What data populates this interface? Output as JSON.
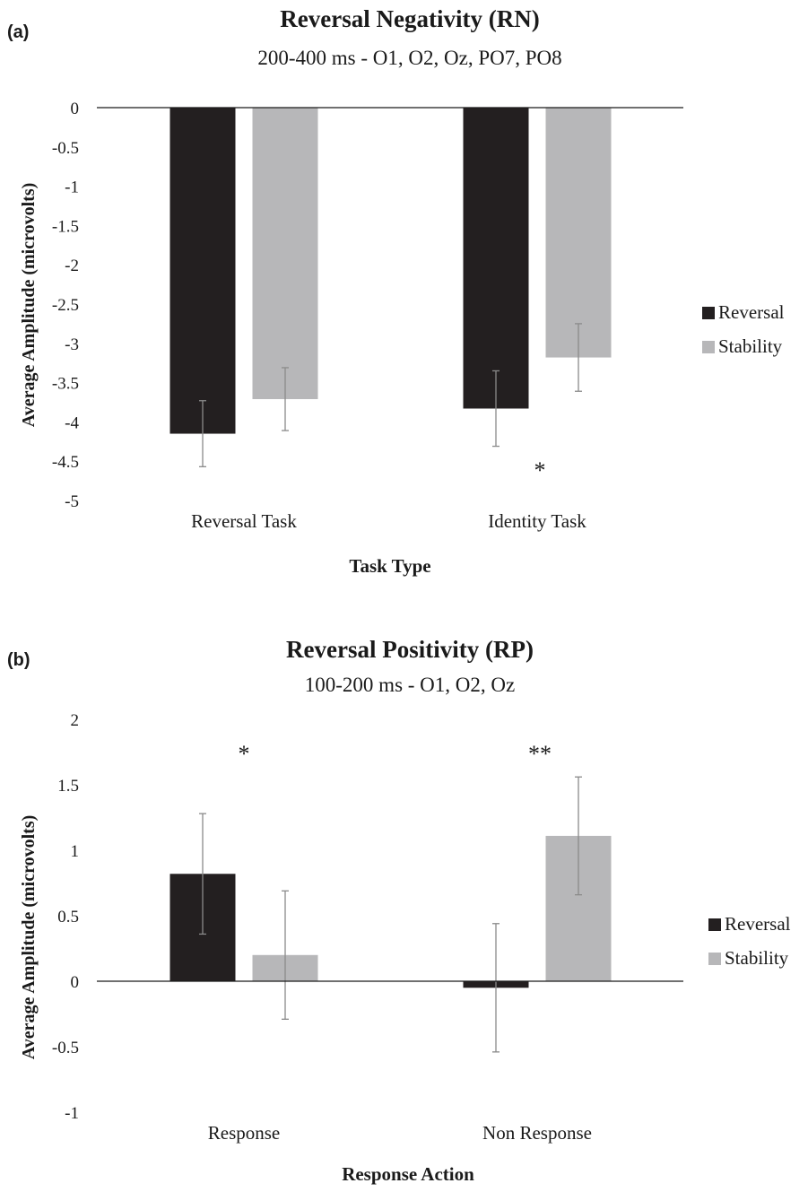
{
  "colors": {
    "reversal": "#231f20",
    "stability": "#b7b7b9",
    "axis": "#1a1a1a",
    "errorbar": "#8a8a8a"
  },
  "chart_data": [
    {
      "type": "bar",
      "panel_label": "(a)",
      "title": "Reversal Negativity (RN)",
      "subtitle": "200-400 ms - O1, O2, Oz, PO7, PO8",
      "xlabel": "Task Type",
      "ylabel": "Average Amplitude (microvolts)",
      "categories": [
        "Reversal Task",
        "Identity Task"
      ],
      "ylim": [
        -5,
        0
      ],
      "yticks": [
        0,
        -0.5,
        -1,
        -1.5,
        -2,
        -2.5,
        -3,
        -3.5,
        -4,
        -4.5,
        -5
      ],
      "ytick_labels": [
        "0",
        "-0.5",
        "-1",
        "-1.5",
        "-2",
        "-2.5",
        "-3",
        "-3.5",
        "-4",
        "-4.5",
        "-5"
      ],
      "legend_position": "right",
      "series": [
        {
          "name": "Reversal",
          "color_key": "reversal",
          "values": [
            -4.15,
            -3.83
          ],
          "error": [
            0.42,
            0.48
          ]
        },
        {
          "name": "Stability",
          "color_key": "stability",
          "values": [
            -3.71,
            -3.18
          ],
          "error": [
            0.4,
            0.43
          ]
        }
      ],
      "annotations": [
        {
          "text": "*",
          "category_index": 1,
          "y": -4.58
        }
      ]
    },
    {
      "type": "bar",
      "panel_label": "(b)",
      "title": "Reversal Positivity (RP)",
      "subtitle": "100-200 ms - O1, O2, Oz",
      "xlabel": "Response Action",
      "ylabel": "Average Amplitude (microvolts)",
      "categories": [
        "Response",
        "Non Response"
      ],
      "ylim": [
        -1,
        2
      ],
      "yticks": [
        2,
        1.5,
        1,
        0.5,
        0,
        -0.5,
        -1
      ],
      "ytick_labels": [
        "2",
        "1.5",
        "1",
        "0.5",
        "0",
        "-0.5",
        "-1"
      ],
      "legend_position": "right",
      "series": [
        {
          "name": "Reversal",
          "color_key": "reversal",
          "values": [
            0.82,
            -0.05
          ],
          "error": [
            0.46,
            0.49
          ]
        },
        {
          "name": "Stability",
          "color_key": "stability",
          "values": [
            0.2,
            1.11
          ],
          "error": [
            0.49,
            0.45
          ]
        }
      ],
      "annotations": [
        {
          "text": "*",
          "category_index": 0,
          "y": 1.76
        },
        {
          "text": "**",
          "category_index": 1,
          "y": 1.76
        }
      ]
    }
  ]
}
